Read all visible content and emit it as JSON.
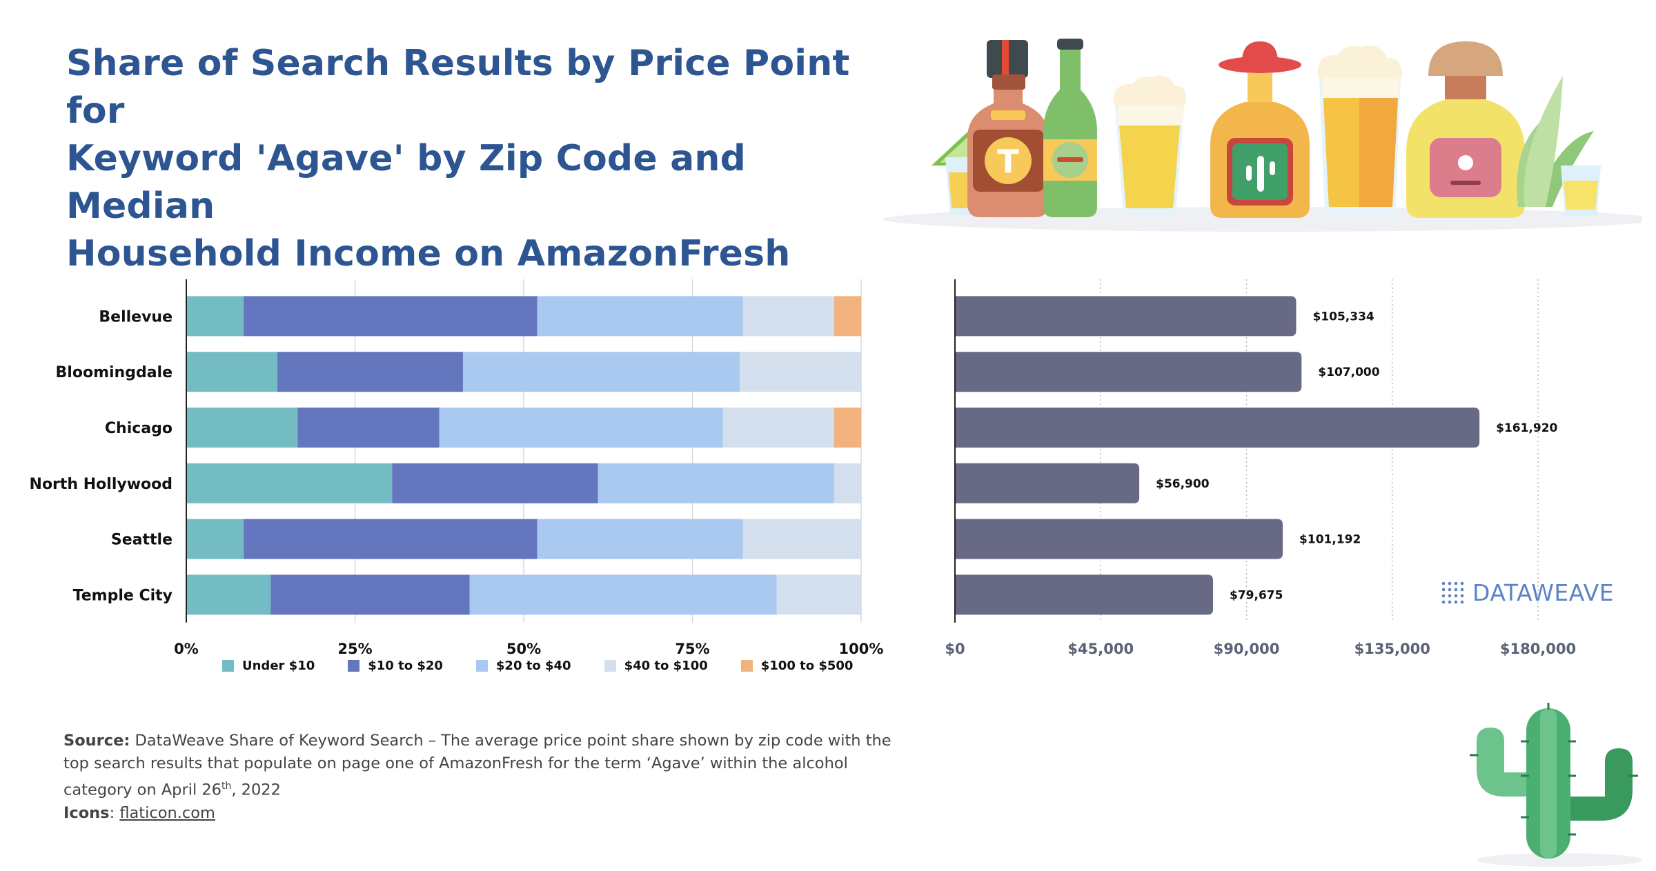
{
  "title_lines": [
    "Share of Search Results by Price Point for",
    "Keyword 'Agave' by Zip Code and Median",
    "Household Income on AmazonFresh"
  ],
  "colors": {
    "title": "#2c5591",
    "under_10": "#74bcc4",
    "10_to_20": "#6476bd",
    "20_to_40": "#a9c9f1",
    "40_to_100": "#d3dfec",
    "100_to_500": "#f2b27e",
    "income_bar": "#686984"
  },
  "chart_data": [
    {
      "type": "bar",
      "orientation": "horizontal",
      "stacked": true,
      "categories": [
        "Bellevue",
        "Bloomingdale",
        "Chicago",
        "North Hollywood",
        "Seattle",
        "Temple City"
      ],
      "series": [
        {
          "name": "Under $10",
          "values": [
            8.5,
            13.5,
            16.5,
            30.5,
            8.5,
            12.5
          ]
        },
        {
          "name": "$10 to $20",
          "values": [
            43.5,
            27.5,
            21,
            30.5,
            43.5,
            29.5
          ]
        },
        {
          "name": "$20 to $40",
          "values": [
            30.5,
            41,
            42,
            35,
            30.5,
            45.5
          ]
        },
        {
          "name": "$40 to $100",
          "values": [
            13.5,
            18,
            16.5,
            4,
            17.5,
            12.5
          ]
        },
        {
          "name": "$100 to $500",
          "values": [
            4,
            0,
            4,
            0,
            0,
            0
          ]
        }
      ],
      "xticks": [
        "0%",
        "25%",
        "50%",
        "75%",
        "100%"
      ],
      "xlim": [
        0,
        100
      ],
      "grid": true,
      "legend_position": "bottom"
    },
    {
      "type": "bar",
      "orientation": "horizontal",
      "categories": [
        "Bellevue",
        "Bloomingdale",
        "Chicago",
        "North Hollywood",
        "Seattle",
        "Temple City"
      ],
      "values": [
        105334,
        107000,
        161920,
        56900,
        101192,
        79675
      ],
      "value_labels": [
        "$105,334",
        "$107,000",
        "$161,920",
        "$56,900",
        "$101,192",
        "$79,675"
      ],
      "xticks": [
        "$0",
        "$45,000",
        "$90,000",
        "$135,000",
        "$180,000"
      ],
      "xlim": [
        0,
        180000
      ],
      "grid": "dotted"
    }
  ],
  "source": {
    "label": "Source:",
    "text_part1": " DataWeave Share of Keyword Search – The average price point share shown by zip code with the top search results that populate on page one of AmazonFresh for the term ‘Agave’ within the alcohol category on April 26",
    "sup": "th",
    "text_part2": ", 2022",
    "icons_label": "Icons",
    "icons_sep": ": ",
    "icons_link": "flaticon.com"
  },
  "brand": "DATAWEAVE",
  "icons": [
    "liquor-bottle-icon",
    "beer-bottle-icon",
    "beer-glass-icon",
    "tequila-bottle-icon",
    "beer-mug-icon",
    "mezcal-bottle-icon",
    "shot-glass-icon",
    "cactus-icon"
  ]
}
